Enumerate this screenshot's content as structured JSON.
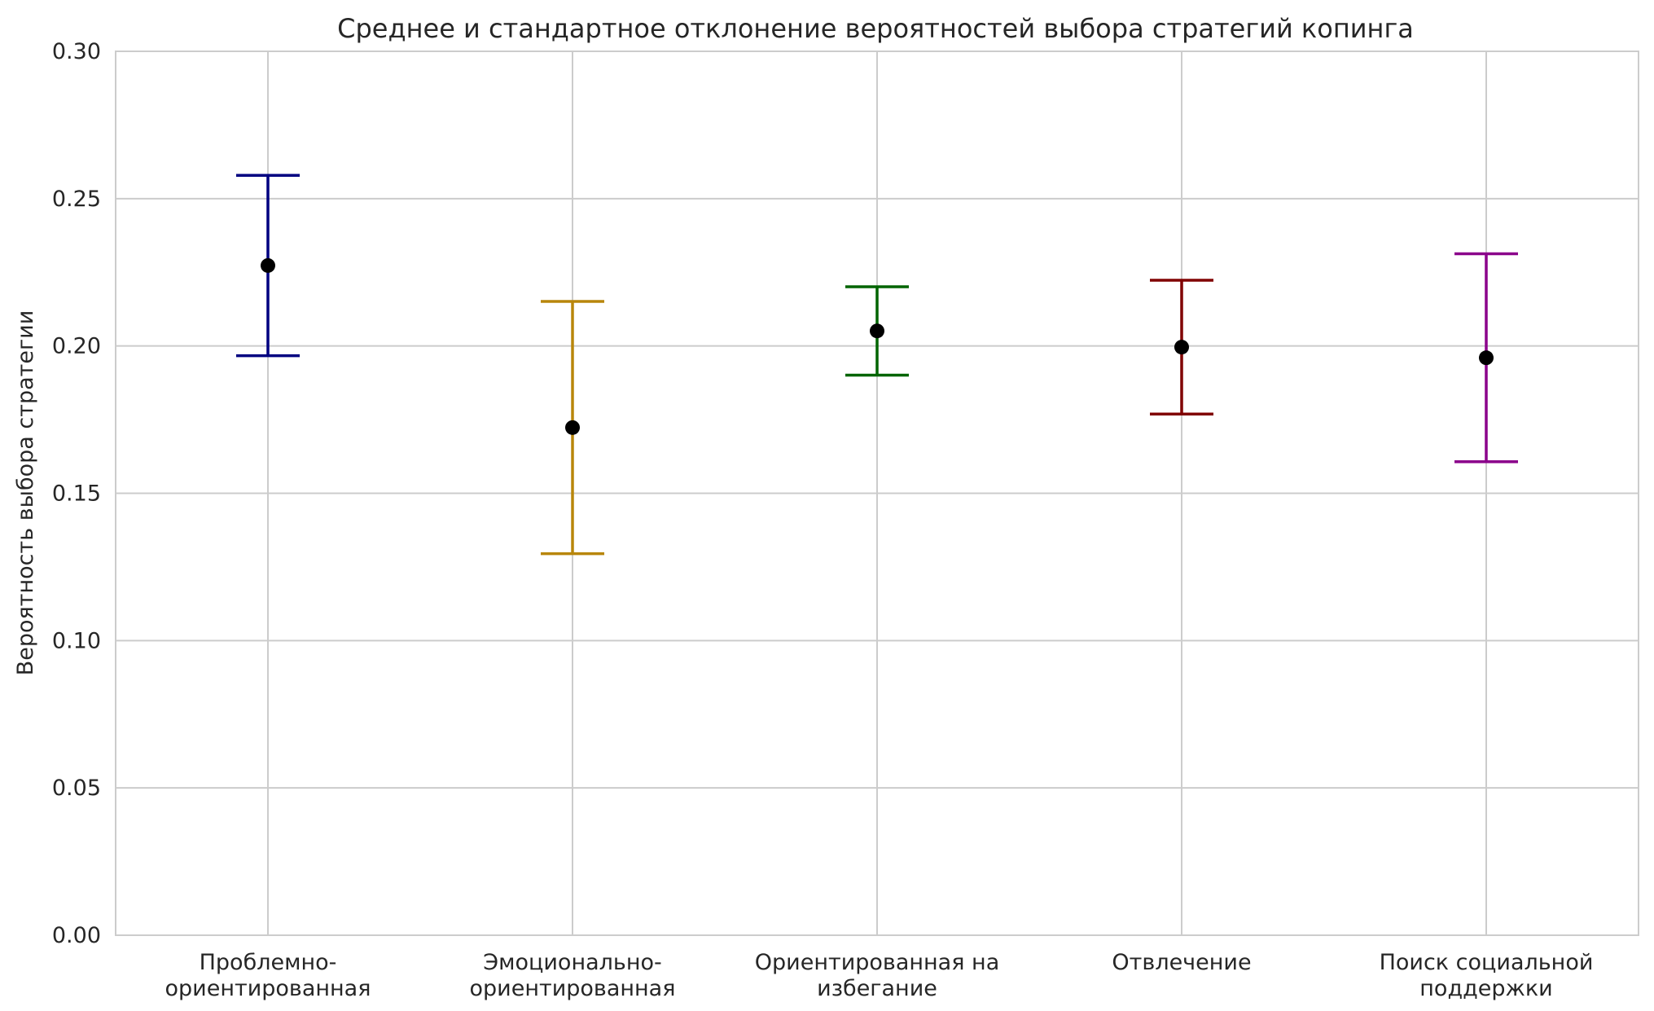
{
  "chart_data": {
    "type": "errorbar",
    "title": "Среднее и стандартное отклонение вероятностей выбора стратегий копинга",
    "xlabel": "",
    "ylabel": "Вероятность выбора стратегии",
    "ylim": [
      0.0,
      0.3
    ],
    "yticks": [
      "0.00",
      "0.05",
      "0.10",
      "0.15",
      "0.20",
      "0.25",
      "0.30"
    ],
    "grid": true,
    "categories": [
      [
        "Проблемно-",
        "ориентированная"
      ],
      [
        "Эмоционально-",
        "ориентированная"
      ],
      [
        "Ориентированная на",
        "избегание"
      ],
      [
        "Отвлечение"
      ],
      [
        "Поиск социальной",
        "поддержки"
      ]
    ],
    "means": [
      0.2273,
      0.1723,
      0.2051,
      0.1996,
      0.196
    ],
    "std": [
      0.0306,
      0.0428,
      0.015,
      0.0227,
      0.0353
    ],
    "colors": [
      "#000080",
      "#b8860b",
      "#006400",
      "#800000",
      "#8b008b"
    ],
    "marker_color": "#000000"
  }
}
